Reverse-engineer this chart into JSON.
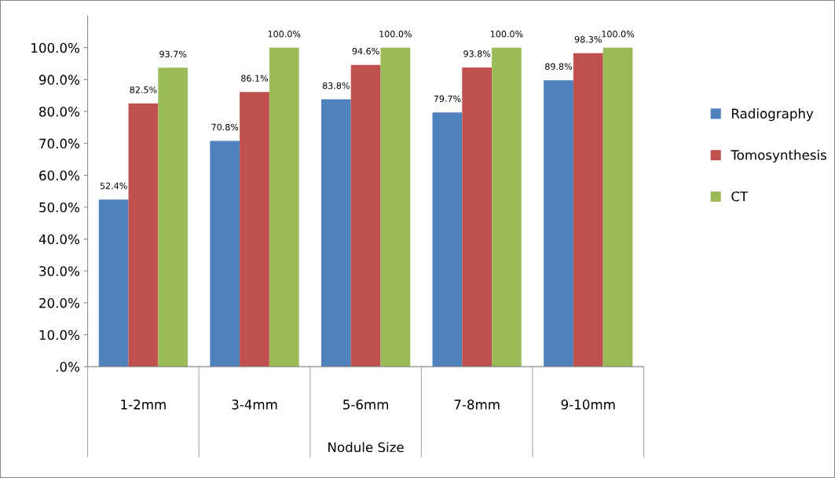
{
  "chart_data": {
    "type": "bar",
    "xlabel": "Nodule Size",
    "categories": [
      "1-2mm",
      "3-4mm",
      "5-6mm",
      "7-8mm",
      "9-10mm"
    ],
    "series": [
      {
        "name": "Radiography",
        "color": "#4f81bd",
        "values": [
          52.4,
          70.8,
          83.8,
          79.7,
          89.8
        ],
        "value_labels": [
          "52.4%",
          "70.8%",
          "83.8%",
          "79.7%",
          "89.8%"
        ]
      },
      {
        "name": "Tomosynthesis",
        "color": "#c0504d",
        "values": [
          82.5,
          86.1,
          94.6,
          93.8,
          98.3
        ],
        "value_labels": [
          "82.5%",
          "86.1%",
          "94.6%",
          "93.8%",
          "98.3%"
        ]
      },
      {
        "name": "CT",
        "color": "#9bbb59",
        "values": [
          93.7,
          100.0,
          100.0,
          100.0,
          100.0
        ],
        "value_labels": [
          "93.7%",
          "100.0%",
          "100.0%",
          "100.0%",
          "100.0%"
        ]
      }
    ],
    "ylim": [
      0,
      110
    ],
    "yticks": [
      {
        "value": 0,
        "label": ".0%"
      },
      {
        "value": 10,
        "label": "10.0%"
      },
      {
        "value": 20,
        "label": "20.0%"
      },
      {
        "value": 30,
        "label": "30.0%"
      },
      {
        "value": 40,
        "label": "40.0%"
      },
      {
        "value": 50,
        "label": "50.0%"
      },
      {
        "value": 60,
        "label": "60.0%"
      },
      {
        "value": 70,
        "label": "70.0%"
      },
      {
        "value": 80,
        "label": "80.0%"
      },
      {
        "value": 90,
        "label": "90.0%"
      },
      {
        "value": 100,
        "label": "100.0%"
      }
    ],
    "grid": false,
    "legend": "right"
  }
}
